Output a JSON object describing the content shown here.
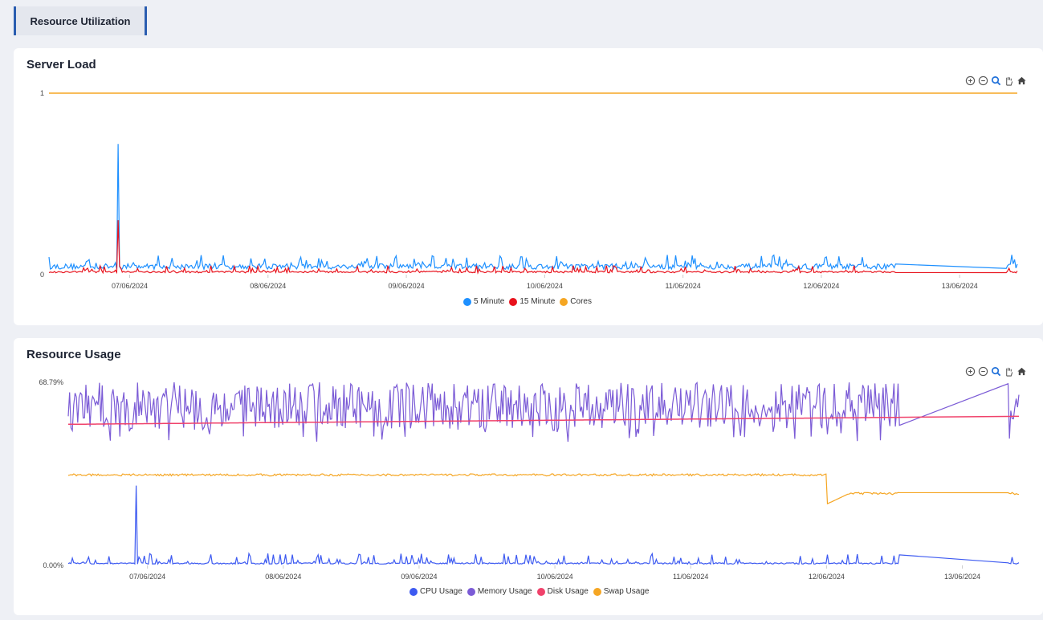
{
  "tab": {
    "label": "Resource Utilization"
  },
  "cards": [
    {
      "title": "Server Load",
      "chart_data": {
        "type": "line",
        "title": "Server Load",
        "x_ticks": [
          "07/06/2024",
          "08/06/2024",
          "09/06/2024",
          "10/06/2024",
          "11/06/2024",
          "12/06/2024",
          "13/06/2024"
        ],
        "x_range": [
          "06/06/2024 10:00",
          "13/06/2024 10:00"
        ],
        "y_ticks": [
          "0",
          "1"
        ],
        "ylim": [
          0,
          1
        ],
        "data_gap": {
          "from": "12/06/2024 13:00",
          "to": "13/06/2024 08:00"
        },
        "series": [
          {
            "name": "5 Minute",
            "color": "#1e90ff",
            "baseline": 0.03,
            "typical_peak": 0.08,
            "max": {
              "x": "06/06/2024 22:00",
              "y": 0.72
            }
          },
          {
            "name": "15 Minute",
            "color": "#e8121c",
            "baseline": 0.01,
            "typical_peak": 0.04,
            "max": {
              "x": "06/06/2024 22:00",
              "y": 0.3
            }
          },
          {
            "name": "Cores",
            "color": "#f5a623",
            "constant": 1
          }
        ],
        "legend": "bottom-center"
      }
    },
    {
      "title": "Resource Usage",
      "chart_data": {
        "type": "line",
        "title": "Resource Usage",
        "x_ticks": [
          "07/06/2024",
          "08/06/2024",
          "09/06/2024",
          "10/06/2024",
          "11/06/2024",
          "12/06/2024",
          "13/06/2024"
        ],
        "x_range": [
          "06/06/2024 10:00",
          "13/06/2024 10:00"
        ],
        "y_ticks": [
          "0.00%",
          "68.79%"
        ],
        "ylim": [
          0,
          68.79
        ],
        "unit": "%",
        "data_gap": {
          "from": "12/06/2024 13:00",
          "to": "13/06/2024 08:00"
        },
        "series": [
          {
            "name": "CPU Usage",
            "color": "#3d5af1",
            "baseline": 0.5,
            "typical_peak": 4,
            "max": {
              "x": "06/06/2024 22:00",
              "y": 30
            }
          },
          {
            "name": "Memory Usage",
            "color": "#7b5bd6",
            "range": [
              42,
              68.79
            ]
          },
          {
            "name": "Disk Usage",
            "color": "#f0426b",
            "start": 53,
            "end": 56
          },
          {
            "name": "Swap Usage",
            "color": "#f5a623",
            "before_drop": 34,
            "after_drop": 27,
            "drop_at": "12/06/2024 00:00"
          }
        ],
        "legend": "bottom-center"
      }
    }
  ],
  "toolbar": [
    {
      "name": "zoom-in-icon"
    },
    {
      "name": "zoom-out-icon"
    },
    {
      "name": "magnifier-icon"
    },
    {
      "name": "pan-hand-icon"
    },
    {
      "name": "home-reset-icon"
    }
  ]
}
